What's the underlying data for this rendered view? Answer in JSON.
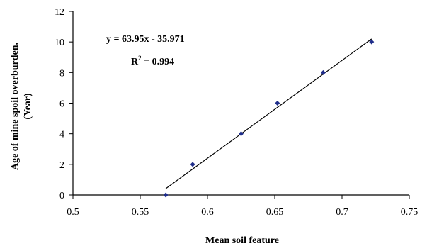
{
  "chart_data": {
    "type": "scatter",
    "xlabel": "Mean soil feature",
    "ylabel_line1": "Age of mine spoil overburden.",
    "ylabel_line2": "(Year)",
    "xlim": [
      0.5,
      0.75
    ],
    "ylim": [
      0,
      12
    ],
    "x_ticks": [
      0.5,
      0.55,
      0.6,
      0.65,
      0.7,
      0.75
    ],
    "x_tick_labels": [
      "0.5",
      "0.55",
      "0.6",
      "0.65",
      "0.7",
      "0.75"
    ],
    "y_ticks": [
      0,
      2,
      4,
      6,
      8,
      10,
      12
    ],
    "y_tick_labels": [
      "0",
      "2",
      "4",
      "6",
      "8",
      "10",
      "12"
    ],
    "grid": false,
    "legend": "none",
    "points": [
      {
        "x": 0.569,
        "y": 0
      },
      {
        "x": 0.589,
        "y": 2
      },
      {
        "x": 0.625,
        "y": 4
      },
      {
        "x": 0.652,
        "y": 6
      },
      {
        "x": 0.686,
        "y": 8
      },
      {
        "x": 0.722,
        "y": 10
      }
    ],
    "trendline": {
      "slope": 63.95,
      "intercept": -35.971,
      "equation_text": "y = 63.95x - 35.971",
      "r2_prefix": "R",
      "r2_exponent": "2",
      "r2_suffix": " = 0.994"
    },
    "colors": {
      "marker": "#1f2d8a",
      "line": "#000000",
      "axis": "#000000"
    }
  }
}
